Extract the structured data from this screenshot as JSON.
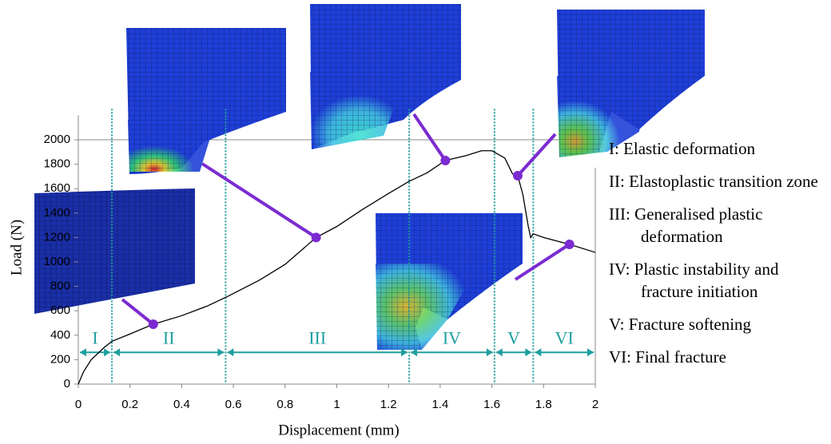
{
  "chart_data": {
    "type": "line",
    "x_label": "Displacement (mm)",
    "y_label": "Load (N)",
    "x": [
      0,
      0.02,
      0.05,
      0.1,
      0.13,
      0.2,
      0.29,
      0.4,
      0.5,
      0.58,
      0.7,
      0.8,
      0.92,
      1.0,
      1.1,
      1.2,
      1.28,
      1.35,
      1.42,
      1.5,
      1.56,
      1.6,
      1.65,
      1.68,
      1.7,
      1.72,
      1.74,
      1.75,
      1.76,
      1.8,
      1.9,
      2.0
    ],
    "y": [
      0,
      100,
      200,
      300,
      350,
      410,
      490,
      560,
      640,
      720,
      850,
      980,
      1200,
      1290,
      1430,
      1560,
      1660,
      1730,
      1830,
      1870,
      1910,
      1910,
      1850,
      1720,
      1706,
      1550,
      1300,
      1200,
      1230,
      1200,
      1144,
      1078
    ],
    "color": "#000000",
    "markers": {
      "color": "#7b2bd1",
      "x": [
        0.29,
        0.92,
        1.42,
        1.7,
        1.9
      ],
      "y": [
        490,
        1200,
        1830,
        1706,
        1144
      ]
    },
    "xlim": [
      0,
      2
    ],
    "xticks": [
      0,
      0.2,
      0.4,
      0.6,
      0.8,
      1,
      1.2,
      1.4,
      1.6,
      1.8,
      2
    ],
    "ylim": [
      0,
      2200
    ],
    "yticks": [
      0,
      200,
      400,
      600,
      800,
      1000,
      1200,
      1400,
      1600,
      1800,
      2000
    ],
    "reference_line": 2000,
    "zones": {
      "color": "#1f9e9e",
      "edges": [
        0,
        0.13,
        0.57,
        1.28,
        1.61,
        1.76,
        2
      ],
      "arrow_level": 260,
      "labels": [
        "I",
        "II",
        "III",
        "IV",
        "V",
        "VI"
      ],
      "descriptions": [
        "I: Elastic deformation",
        "II: Elastoplastic transition zone",
        "III: Generalised plastic deformation",
        "IV: Plastic instability and fracture initiation",
        "V: Fracture softening",
        "VI: Final fracture"
      ]
    }
  }
}
